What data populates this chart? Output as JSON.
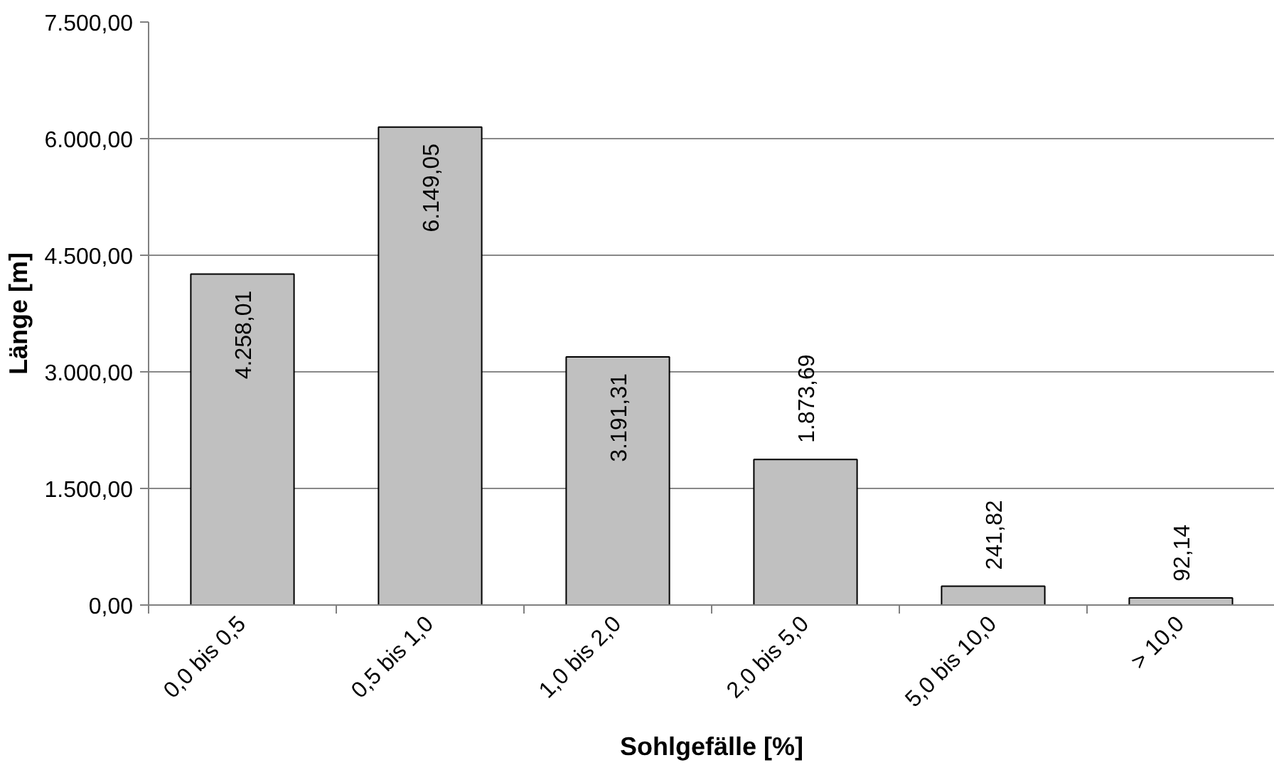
{
  "chart_data": {
    "type": "bar",
    "xlabel": "Sohlgefälle [%]",
    "ylabel": "Länge [m]",
    "categories": [
      "0,0 bis 0,5",
      "0,5 bis 1,0",
      "1,0 bis 2,0",
      "2,0 bis 5,0",
      "5,0 bis 10,0",
      "> 10,0"
    ],
    "values": [
      4258.01,
      6149.05,
      3191.31,
      1873.69,
      241.82,
      92.14
    ],
    "value_labels": [
      "4.258,01",
      "6.149,05",
      "3.191,31",
      "1.873,69",
      "241,82",
      "92,14"
    ],
    "color": "#c0c0c0",
    "ylim": [
      0,
      7500
    ],
    "yticks": [
      {
        "value": 0,
        "label": "0,00"
      },
      {
        "value": 1500,
        "label": "1.500,00"
      },
      {
        "value": 3000,
        "label": "3.000,00"
      },
      {
        "value": 4500,
        "label": "4.500,00"
      },
      {
        "value": 6000,
        "label": "6.000,00"
      },
      {
        "value": 7500,
        "label": "7.500,00"
      }
    ],
    "grid": "y"
  }
}
